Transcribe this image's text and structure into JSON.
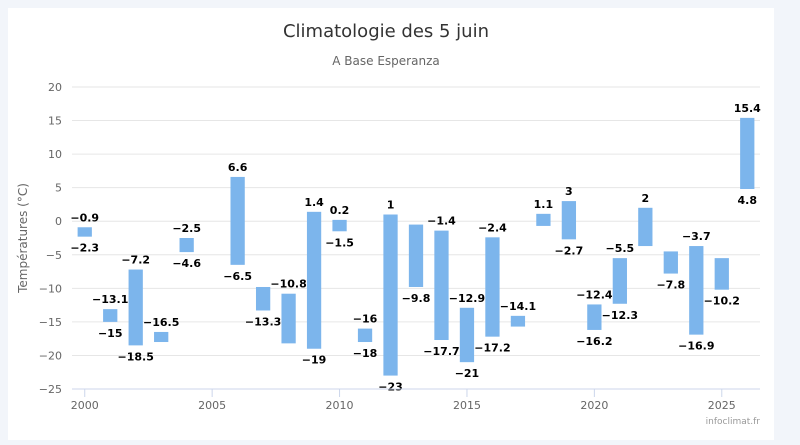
{
  "chart_data": {
    "type": "columnrange",
    "title": "Climatologie des 5 juin",
    "subtitle": "A Base Esperanza",
    "ylabel": "Températures (°C)",
    "xlabel": "",
    "ylim": [
      -25,
      20
    ],
    "xlim": [
      1999.5,
      2026.5
    ],
    "yticks": [
      20,
      15,
      10,
      5,
      0,
      -5,
      -10,
      -15,
      -20,
      -25
    ],
    "ytick_labels": [
      "20",
      "15",
      "10",
      "5",
      "0",
      "−5",
      "−10",
      "−15",
      "−20",
      "−25"
    ],
    "xticks": [
      2000,
      2005,
      2010,
      2015,
      2020,
      2025
    ],
    "xtick_labels": [
      "2000",
      "2005",
      "2010",
      "2015",
      "2020",
      "2025"
    ],
    "grid": true,
    "legend": "none",
    "bar_color": "#7cb5ec",
    "credits": "infoclimat.fr",
    "points": [
      {
        "x": 2000,
        "low": -2.3,
        "high": -0.9,
        "low_label": "−2.3",
        "high_label": "−0.9"
      },
      {
        "x": 2001,
        "low": -15,
        "high": -13.1,
        "low_label": "−15",
        "high_label": "−13.1"
      },
      {
        "x": 2002,
        "low": -18.5,
        "high": -7.2,
        "low_label": "−18.5",
        "high_label": "−7.2"
      },
      {
        "x": 2003,
        "low": -18,
        "high": -16.5,
        "low_label": "",
        "high_label": "−16.5"
      },
      {
        "x": 2004,
        "low": -4.6,
        "high": -2.5,
        "low_label": "−4.6",
        "high_label": "−2.5"
      },
      {
        "x": 2006,
        "low": -6.5,
        "high": 6.6,
        "low_label": "−6.5",
        "high_label": "6.6"
      },
      {
        "x": 2007,
        "low": -13.3,
        "high": -9.8,
        "low_label": "−13.3",
        "high_label": ""
      },
      {
        "x": 2008,
        "low": -18.2,
        "high": -10.8,
        "low_label": "",
        "high_label": "−10.8"
      },
      {
        "x": 2009,
        "low": -19,
        "high": 1.4,
        "low_label": "−19",
        "high_label": "1.4"
      },
      {
        "x": 2010,
        "low": -1.5,
        "high": 0.2,
        "low_label": "−1.5",
        "high_label": "0.2"
      },
      {
        "x": 2011,
        "low": -18,
        "high": -16,
        "low_label": "−18",
        "high_label": "−16"
      },
      {
        "x": 2012,
        "low": -23,
        "high": 1,
        "low_label": "−23",
        "high_label": "1"
      },
      {
        "x": 2013,
        "low": -9.8,
        "high": -0.5,
        "low_label": "−9.8",
        "high_label": ""
      },
      {
        "x": 2014,
        "low": -17.7,
        "high": -1.4,
        "low_label": "−17.7",
        "high_label": "−1.4"
      },
      {
        "x": 2015,
        "low": -21,
        "high": -12.9,
        "low_label": "−21",
        "high_label": "−12.9"
      },
      {
        "x": 2016,
        "low": -17.2,
        "high": -2.4,
        "low_label": "−17.2",
        "high_label": "−2.4"
      },
      {
        "x": 2017,
        "low": -15.7,
        "high": -14.1,
        "low_label": "",
        "high_label": "−14.1"
      },
      {
        "x": 2018,
        "low": -0.7,
        "high": 1.1,
        "low_label": "",
        "high_label": "1.1"
      },
      {
        "x": 2019,
        "low": -2.7,
        "high": 3,
        "low_label": "−2.7",
        "high_label": "3"
      },
      {
        "x": 2020,
        "low": -16.2,
        "high": -12.4,
        "low_label": "−16.2",
        "high_label": "−12.4"
      },
      {
        "x": 2021,
        "low": -12.3,
        "high": -5.5,
        "low_label": "−12.3",
        "high_label": "−5.5"
      },
      {
        "x": 2022,
        "low": -3.7,
        "high": 2,
        "low_label": "",
        "high_label": "2"
      },
      {
        "x": 2023,
        "low": -7.8,
        "high": -4.5,
        "low_label": "−7.8",
        "high_label": ""
      },
      {
        "x": 2024,
        "low": -16.9,
        "high": -3.7,
        "low_label": "−16.9",
        "high_label": "−3.7"
      },
      {
        "x": 2025,
        "low": -10.2,
        "high": -5.5,
        "low_label": "−10.2",
        "high_label": ""
      },
      {
        "x": 2026,
        "low": 4.8,
        "high": 15.4,
        "low_label": "4.8",
        "high_label": "15.4"
      }
    ]
  }
}
